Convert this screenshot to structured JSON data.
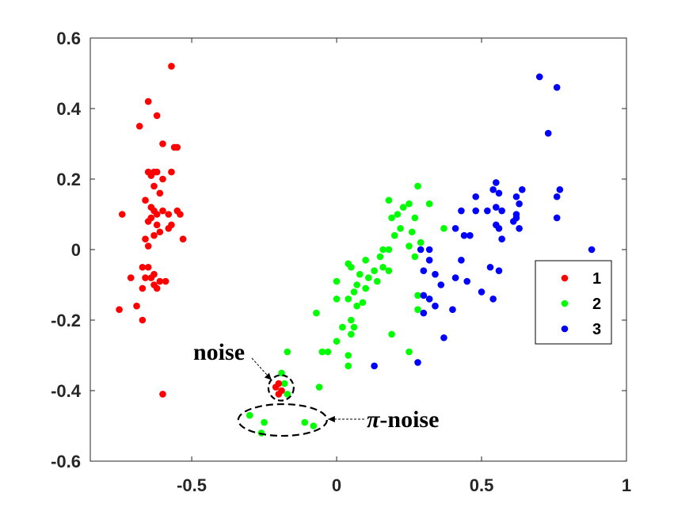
{
  "chart_data": {
    "type": "scatter",
    "title": "",
    "xlabel": "",
    "ylabel": "",
    "xlim": [
      -0.85,
      1
    ],
    "ylim": [
      -0.6,
      0.6
    ],
    "grid": false,
    "legend": "right",
    "x_ticks": [
      "-0.5",
      "0",
      "0.5",
      "1"
    ],
    "x_tick_values": [
      -0.5,
      0,
      0.5,
      1
    ],
    "y_ticks": [
      "0.6",
      "0.4",
      "0.2",
      "0",
      "-0.2",
      "-0.4",
      "-0.6"
    ],
    "y_tick_values": [
      0.6,
      0.4,
      0.2,
      0,
      -0.2,
      -0.4,
      -0.6
    ],
    "series": [
      {
        "name": "1",
        "color": "#ff0000",
        "points": [
          [
            -0.57,
            0.52
          ],
          [
            -0.65,
            0.42
          ],
          [
            -0.62,
            0.38
          ],
          [
            -0.68,
            0.35
          ],
          [
            -0.6,
            0.3
          ],
          [
            -0.56,
            0.29
          ],
          [
            -0.55,
            0.29
          ],
          [
            -0.65,
            0.22
          ],
          [
            -0.64,
            0.21
          ],
          [
            -0.62,
            0.22
          ],
          [
            -0.63,
            0.22
          ],
          [
            -0.6,
            0.2
          ],
          [
            -0.57,
            0.22
          ],
          [
            -0.63,
            0.18
          ],
          [
            -0.61,
            0.16
          ],
          [
            -0.74,
            0.1
          ],
          [
            -0.66,
            0.14
          ],
          [
            -0.64,
            0.12
          ],
          [
            -0.63,
            0.11
          ],
          [
            -0.62,
            0.1
          ],
          [
            -0.64,
            0.09
          ],
          [
            -0.6,
            0.11
          ],
          [
            -0.58,
            0.1
          ],
          [
            -0.55,
            0.11
          ],
          [
            -0.54,
            0.1
          ],
          [
            -0.65,
            0.08
          ],
          [
            -0.62,
            0.07
          ],
          [
            -0.58,
            0.06
          ],
          [
            -0.57,
            0.07
          ],
          [
            -0.63,
            0.04
          ],
          [
            -0.66,
            0.03
          ],
          [
            -0.61,
            0.05
          ],
          [
            -0.53,
            0.03
          ],
          [
            -0.65,
            0.01
          ],
          [
            -0.67,
            -0.05
          ],
          [
            -0.65,
            -0.05
          ],
          [
            -0.63,
            -0.07
          ],
          [
            -0.66,
            -0.08
          ],
          [
            -0.71,
            -0.08
          ],
          [
            -0.64,
            -0.08
          ],
          [
            -0.61,
            -0.09
          ],
          [
            -0.59,
            -0.09
          ],
          [
            -0.67,
            -0.11
          ],
          [
            -0.63,
            -0.1
          ],
          [
            -0.62,
            -0.11
          ],
          [
            -0.69,
            -0.16
          ],
          [
            -0.75,
            -0.17
          ],
          [
            -0.67,
            -0.2
          ],
          [
            -0.6,
            -0.41
          ]
        ]
      },
      {
        "name": "2",
        "color": "#00ff00",
        "points": [
          [
            0.18,
            0.14
          ],
          [
            0.28,
            0.18
          ],
          [
            0.23,
            0.12
          ],
          [
            0.25,
            0.13
          ],
          [
            0.32,
            0.13
          ],
          [
            0.19,
            0.09
          ],
          [
            0.21,
            0.1
          ],
          [
            0.27,
            0.09
          ],
          [
            0.22,
            0.06
          ],
          [
            0.26,
            0.05
          ],
          [
            0.37,
            0.06
          ],
          [
            0.2,
            0.04
          ],
          [
            0.25,
            0.01
          ],
          [
            0.29,
            0.02
          ],
          [
            0.16,
            0.0
          ],
          [
            0.18,
            0.0
          ],
          [
            0.15,
            -0.02
          ],
          [
            0.27,
            -0.02
          ],
          [
            0.1,
            -0.03
          ],
          [
            0.16,
            -0.05
          ],
          [
            0.04,
            -0.04
          ],
          [
            0.05,
            -0.05
          ],
          [
            0.13,
            -0.06
          ],
          [
            0.18,
            -0.06
          ],
          [
            0.08,
            -0.07
          ],
          [
            0.11,
            -0.08
          ],
          [
            0.14,
            -0.09
          ],
          [
            0.0,
            -0.09
          ],
          [
            0.07,
            -0.1
          ],
          [
            0.1,
            -0.11
          ],
          [
            0.06,
            -0.12
          ],
          [
            0.04,
            -0.14
          ],
          [
            0.0,
            -0.14
          ],
          [
            0.09,
            -0.15
          ],
          [
            0.07,
            -0.16
          ],
          [
            0.28,
            -0.13
          ],
          [
            0.32,
            -0.14
          ],
          [
            -0.07,
            -0.18
          ],
          [
            0.28,
            -0.17
          ],
          [
            0.05,
            -0.2
          ],
          [
            0.06,
            -0.22
          ],
          [
            0.02,
            -0.22
          ],
          [
            0.05,
            -0.24
          ],
          [
            0.19,
            -0.24
          ],
          [
            0.0,
            -0.26
          ],
          [
            -0.05,
            -0.29
          ],
          [
            -0.03,
            -0.29
          ],
          [
            0.25,
            -0.29
          ],
          [
            -0.17,
            -0.29
          ],
          [
            0.04,
            -0.3
          ],
          [
            0.04,
            -0.33
          ],
          [
            -0.19,
            -0.35
          ],
          [
            -0.18,
            -0.38
          ],
          [
            -0.06,
            -0.39
          ],
          [
            -0.17,
            -0.41
          ],
          [
            -0.3,
            -0.47
          ],
          [
            -0.25,
            -0.49
          ],
          [
            -0.11,
            -0.49
          ],
          [
            -0.08,
            -0.5
          ],
          [
            -0.26,
            -0.52
          ]
        ]
      },
      {
        "name": "3",
        "color": "#0000ff",
        "points": [
          [
            0.7,
            0.49
          ],
          [
            0.76,
            0.46
          ],
          [
            0.73,
            0.33
          ],
          [
            0.55,
            0.19
          ],
          [
            0.54,
            0.17
          ],
          [
            0.48,
            0.15
          ],
          [
            0.56,
            0.16
          ],
          [
            0.62,
            0.15
          ],
          [
            0.64,
            0.17
          ],
          [
            0.77,
            0.17
          ],
          [
            0.76,
            0.15
          ],
          [
            0.63,
            0.13
          ],
          [
            0.55,
            0.12
          ],
          [
            0.57,
            0.11
          ],
          [
            0.52,
            0.11
          ],
          [
            0.48,
            0.11
          ],
          [
            0.43,
            0.11
          ],
          [
            0.62,
            0.1
          ],
          [
            0.62,
            0.09
          ],
          [
            0.61,
            0.08
          ],
          [
            0.76,
            0.09
          ],
          [
            0.55,
            0.07
          ],
          [
            0.41,
            0.06
          ],
          [
            0.56,
            0.06
          ],
          [
            0.63,
            0.06
          ],
          [
            0.44,
            0.04
          ],
          [
            0.46,
            0.04
          ],
          [
            0.57,
            0.03
          ],
          [
            0.29,
            0.0
          ],
          [
            0.32,
            0.0
          ],
          [
            0.88,
            0.0
          ],
          [
            0.43,
            -0.03
          ],
          [
            0.32,
            -0.03
          ],
          [
            0.53,
            -0.05
          ],
          [
            0.56,
            -0.06
          ],
          [
            0.3,
            -0.06
          ],
          [
            0.34,
            -0.07
          ],
          [
            0.41,
            -0.08
          ],
          [
            0.36,
            -0.1
          ],
          [
            0.45,
            -0.09
          ],
          [
            0.5,
            -0.12
          ],
          [
            0.3,
            -0.13
          ],
          [
            0.32,
            -0.14
          ],
          [
            0.54,
            -0.14
          ],
          [
            0.34,
            -0.16
          ],
          [
            0.4,
            -0.17
          ],
          [
            0.3,
            -0.18
          ],
          [
            0.37,
            -0.25
          ],
          [
            0.28,
            -0.32
          ],
          [
            0.13,
            -0.33
          ]
        ]
      },
      {
        "name": "noise",
        "color": "#ff0000",
        "points": [
          [
            -0.21,
            -0.39
          ],
          [
            -0.2,
            -0.38
          ],
          [
            -0.2,
            -0.41
          ],
          [
            -0.19,
            -0.4
          ]
        ]
      }
    ],
    "annotations": [
      {
        "id": "noise",
        "text": "noise",
        "target": [
          -0.2,
          -0.39
        ]
      },
      {
        "id": "pi-noise",
        "symbol": "π",
        "text": "-noise",
        "target": [
          -0.2,
          -0.49
        ]
      }
    ]
  }
}
